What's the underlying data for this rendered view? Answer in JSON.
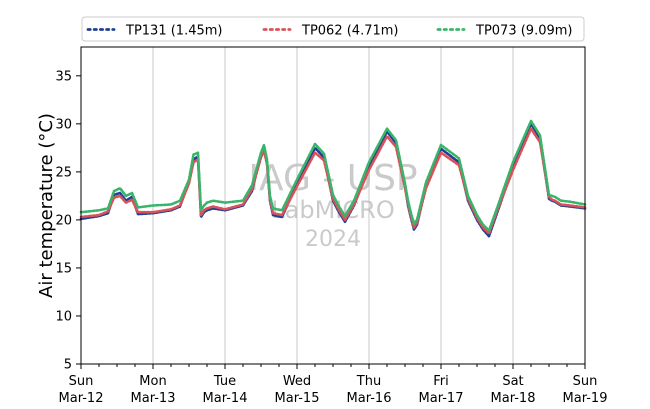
{
  "chart_data": {
    "type": "line",
    "title": "",
    "xlabel": "",
    "ylabel": "Air temperature (°C)",
    "ylim": [
      5,
      38
    ],
    "xlim": [
      "2024-03-12T00:00",
      "2024-03-19T00:00"
    ],
    "yticks": [
      5,
      10,
      15,
      20,
      25,
      30,
      35
    ],
    "xticks": [
      {
        "day": "Sun",
        "date": "Mar-12"
      },
      {
        "day": "Mon",
        "date": "Mar-13"
      },
      {
        "day": "Tue",
        "date": "Mar-14"
      },
      {
        "day": "Wed",
        "date": "Mar-15"
      },
      {
        "day": "Thu",
        "date": "Mar-16"
      },
      {
        "day": "Fri",
        "date": "Mar-17"
      },
      {
        "day": "Sat",
        "date": "Mar-18"
      },
      {
        "day": "Sun",
        "date": "Mar-19"
      }
    ],
    "grid": "vertical",
    "legend": "top",
    "watermark": [
      "IAG - USP",
      "LabMICRO",
      "2024"
    ],
    "series": [
      {
        "name": "TP131 (1.45m)",
        "color": "#1f3f8f",
        "x": [
          "2024-03-12T00:00",
          "2024-03-12T06:00",
          "2024-03-12T09:00",
          "2024-03-12T11:00",
          "2024-03-12T13:00",
          "2024-03-12T15:00",
          "2024-03-12T17:00",
          "2024-03-12T19:00",
          "2024-03-13T00:00",
          "2024-03-13T06:00",
          "2024-03-13T09:00",
          "2024-03-13T12:00",
          "2024-03-13T13:30",
          "2024-03-13T15:00",
          "2024-03-13T16:00",
          "2024-03-13T17:00",
          "2024-03-13T18:00",
          "2024-03-13T20:00",
          "2024-03-14T00:00",
          "2024-03-14T06:00",
          "2024-03-14T09:00",
          "2024-03-14T12:00",
          "2024-03-14T13:00",
          "2024-03-14T14:00",
          "2024-03-14T15:00",
          "2024-03-14T16:00",
          "2024-03-14T19:00",
          "2024-03-15T00:00",
          "2024-03-15T06:00",
          "2024-03-15T09:00",
          "2024-03-15T12:00",
          "2024-03-15T14:00",
          "2024-03-15T16:00",
          "2024-03-15T19:00",
          "2024-03-16T00:00",
          "2024-03-16T06:00",
          "2024-03-16T09:00",
          "2024-03-16T12:00",
          "2024-03-16T13:00",
          "2024-03-16T14:00",
          "2024-03-16T15:00",
          "2024-03-16T16:00",
          "2024-03-16T19:00",
          "2024-03-17T00:00",
          "2024-03-17T06:00",
          "2024-03-17T09:00",
          "2024-03-17T12:00",
          "2024-03-17T14:00",
          "2024-03-17T16:00",
          "2024-03-17T19:00",
          "2024-03-18T00:00",
          "2024-03-18T06:00",
          "2024-03-18T09:00",
          "2024-03-18T12:00",
          "2024-03-18T13:00",
          "2024-03-18T14:00",
          "2024-03-18T15:00",
          "2024-03-18T16:00",
          "2024-03-18T19:00",
          "2024-03-19T00:00"
        ],
        "y": [
          20.1,
          20.4,
          20.7,
          22.6,
          22.8,
          22.0,
          22.4,
          20.6,
          20.7,
          21.0,
          21.4,
          24.0,
          26.3,
          26.6,
          20.3,
          20.8,
          21.0,
          21.2,
          21.0,
          21.5,
          23.0,
          26.8,
          27.5,
          26.0,
          22.0,
          20.5,
          20.3,
          23.8,
          27.5,
          26.5,
          22.0,
          20.8,
          19.8,
          21.5,
          25.5,
          29.2,
          28.0,
          23.5,
          21.5,
          20.2,
          19.0,
          19.5,
          23.5,
          27.4,
          26.0,
          22.0,
          20.0,
          19.0,
          18.3,
          21.0,
          25.5,
          30.0,
          28.5,
          22.2,
          22.0,
          21.9,
          21.7,
          21.5,
          21.4,
          21.2
        ]
      },
      {
        "name": "TP062 (4.71m)",
        "color": "#d9515b",
        "x": [
          "2024-03-12T00:00",
          "2024-03-12T06:00",
          "2024-03-12T09:00",
          "2024-03-12T11:00",
          "2024-03-12T13:00",
          "2024-03-12T15:00",
          "2024-03-12T17:00",
          "2024-03-12T19:00",
          "2024-03-13T00:00",
          "2024-03-13T06:00",
          "2024-03-13T09:00",
          "2024-03-13T12:00",
          "2024-03-13T13:30",
          "2024-03-13T15:00",
          "2024-03-13T16:00",
          "2024-03-13T17:00",
          "2024-03-13T18:00",
          "2024-03-13T20:00",
          "2024-03-14T00:00",
          "2024-03-14T06:00",
          "2024-03-14T09:00",
          "2024-03-14T12:00",
          "2024-03-14T13:00",
          "2024-03-14T14:00",
          "2024-03-14T15:00",
          "2024-03-14T16:00",
          "2024-03-14T19:00",
          "2024-03-15T00:00",
          "2024-03-15T06:00",
          "2024-03-15T09:00",
          "2024-03-15T12:00",
          "2024-03-15T14:00",
          "2024-03-15T16:00",
          "2024-03-15T19:00",
          "2024-03-16T00:00",
          "2024-03-16T06:00",
          "2024-03-16T09:00",
          "2024-03-16T12:00",
          "2024-03-16T13:00",
          "2024-03-16T14:00",
          "2024-03-16T15:00",
          "2024-03-16T16:00",
          "2024-03-16T19:00",
          "2024-03-17T00:00",
          "2024-03-17T06:00",
          "2024-03-17T09:00",
          "2024-03-17T12:00",
          "2024-03-17T14:00",
          "2024-03-17T16:00",
          "2024-03-17T19:00",
          "2024-03-18T00:00",
          "2024-03-18T06:00",
          "2024-03-18T09:00",
          "2024-03-18T12:00",
          "2024-03-18T13:00",
          "2024-03-18T14:00",
          "2024-03-18T15:00",
          "2024-03-18T16:00",
          "2024-03-18T19:00",
          "2024-03-19T00:00"
        ],
        "y": [
          20.3,
          20.5,
          20.9,
          22.3,
          22.5,
          21.8,
          22.1,
          20.8,
          20.8,
          21.1,
          21.5,
          23.8,
          26.0,
          26.3,
          20.5,
          21.0,
          21.2,
          21.4,
          21.1,
          21.6,
          23.2,
          26.5,
          27.2,
          25.8,
          22.2,
          20.7,
          20.5,
          23.5,
          27.0,
          26.2,
          22.2,
          21.0,
          20.0,
          21.6,
          25.2,
          28.7,
          27.6,
          23.3,
          21.7,
          20.4,
          19.2,
          19.7,
          23.3,
          27.0,
          25.7,
          22.2,
          20.2,
          19.2,
          18.6,
          21.2,
          25.2,
          29.5,
          28.1,
          22.4,
          22.1,
          22.0,
          21.8,
          21.6,
          21.5,
          21.3
        ]
      },
      {
        "name": "TP073 (9.09m)",
        "color": "#3ab46a",
        "x": [
          "2024-03-12T00:00",
          "2024-03-12T06:00",
          "2024-03-12T09:00",
          "2024-03-12T11:00",
          "2024-03-12T13:00",
          "2024-03-12T15:00",
          "2024-03-12T17:00",
          "2024-03-12T19:00",
          "2024-03-13T00:00",
          "2024-03-13T06:00",
          "2024-03-13T09:00",
          "2024-03-13T12:00",
          "2024-03-13T13:30",
          "2024-03-13T15:00",
          "2024-03-13T16:00",
          "2024-03-13T17:00",
          "2024-03-13T18:00",
          "2024-03-13T20:00",
          "2024-03-14T00:00",
          "2024-03-14T06:00",
          "2024-03-14T09:00",
          "2024-03-14T12:00",
          "2024-03-14T13:00",
          "2024-03-14T14:00",
          "2024-03-14T15:00",
          "2024-03-14T16:00",
          "2024-03-14T19:00",
          "2024-03-15T00:00",
          "2024-03-15T06:00",
          "2024-03-15T09:00",
          "2024-03-15T12:00",
          "2024-03-15T14:00",
          "2024-03-15T16:00",
          "2024-03-15T19:00",
          "2024-03-16T00:00",
          "2024-03-16T06:00",
          "2024-03-16T09:00",
          "2024-03-16T12:00",
          "2024-03-16T13:00",
          "2024-03-16T14:00",
          "2024-03-16T15:00",
          "2024-03-16T16:00",
          "2024-03-16T19:00",
          "2024-03-17T00:00",
          "2024-03-17T06:00",
          "2024-03-17T09:00",
          "2024-03-17T12:00",
          "2024-03-17T14:00",
          "2024-03-17T16:00",
          "2024-03-17T19:00",
          "2024-03-18T00:00",
          "2024-03-18T06:00",
          "2024-03-18T09:00",
          "2024-03-18T12:00",
          "2024-03-18T13:00",
          "2024-03-18T14:00",
          "2024-03-18T15:00",
          "2024-03-18T16:00",
          "2024-03-18T19:00",
          "2024-03-19T00:00"
        ],
        "y": [
          20.8,
          21.0,
          21.2,
          23.0,
          23.3,
          22.5,
          22.8,
          21.3,
          21.5,
          21.6,
          22.0,
          24.2,
          26.8,
          27.0,
          21.0,
          21.5,
          21.8,
          22.0,
          21.8,
          22.0,
          23.6,
          27.0,
          27.8,
          26.3,
          22.5,
          21.2,
          21.0,
          24.2,
          27.9,
          26.9,
          22.6,
          21.4,
          20.4,
          22.0,
          26.0,
          29.5,
          28.3,
          23.8,
          22.0,
          20.7,
          19.6,
          20.0,
          23.9,
          27.8,
          26.4,
          22.5,
          20.5,
          19.5,
          18.9,
          21.5,
          26.0,
          30.3,
          28.8,
          22.6,
          22.5,
          22.4,
          22.2,
          22.0,
          21.9,
          21.6
        ]
      }
    ]
  }
}
